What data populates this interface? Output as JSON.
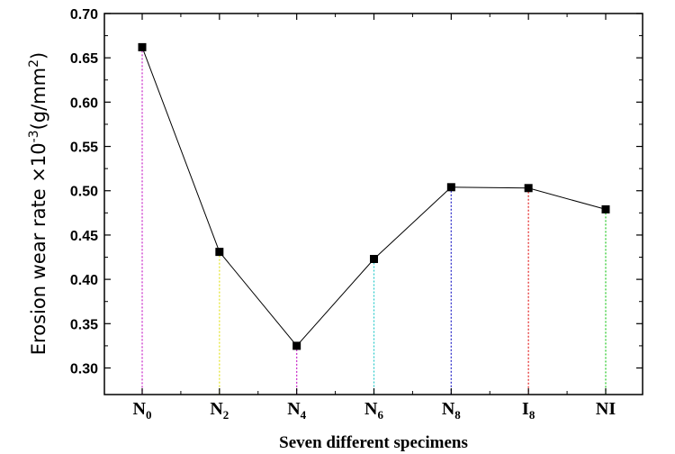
{
  "chart_data": {
    "type": "line",
    "title": "",
    "xlabel": "Seven different specimens",
    "ylabel": {
      "prefix": "Erosion wear rate ×10",
      "exponent": "-3",
      "unit_open": "(g/mm",
      "unit_exponent": "2",
      "unit_close": ")"
    },
    "categories": [
      {
        "base": "N",
        "sub": "0"
      },
      {
        "base": "N",
        "sub": "2"
      },
      {
        "base": "N",
        "sub": "4"
      },
      {
        "base": "N",
        "sub": "6"
      },
      {
        "base": "N",
        "sub": "8"
      },
      {
        "base": "I",
        "sub": "8"
      },
      {
        "base": "NI",
        "sub": ""
      }
    ],
    "values": [
      0.662,
      0.431,
      0.325,
      0.423,
      0.504,
      0.503,
      0.479
    ],
    "drop_line_colors": [
      "#cc33cc",
      "#e6e633",
      "#cc33cc",
      "#33cccc",
      "#3333cc",
      "#e63333",
      "#33cc33"
    ],
    "ylim": [
      0.27,
      0.7
    ],
    "yticks": [
      "0.30",
      "0.35",
      "0.40",
      "0.45",
      "0.50",
      "0.55",
      "0.60",
      "0.65",
      "0.70"
    ],
    "grid": false,
    "legend": "none",
    "line_color": "#000000",
    "marker": "square",
    "marker_color": "#000000"
  }
}
